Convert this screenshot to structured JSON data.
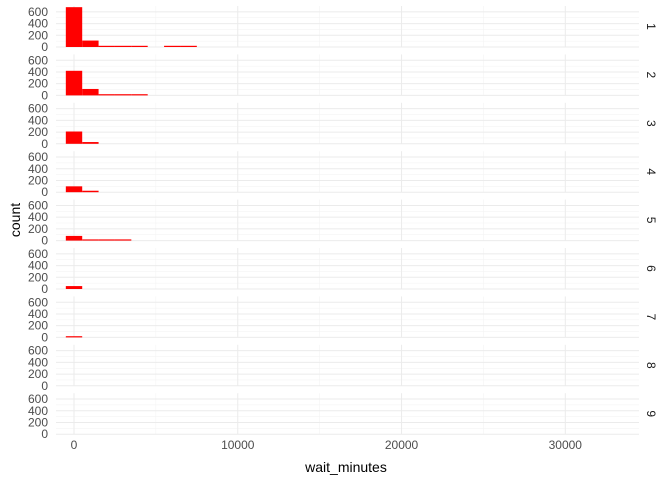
{
  "chart_data": {
    "type": "bar",
    "subtype": "histogram-faceted",
    "xlabel": "wait_minutes",
    "ylabel": "count",
    "x_ticks": [
      0,
      10000,
      20000,
      30000
    ],
    "x_tick_labels": [
      "0",
      "10000",
      "20000",
      "30000"
    ],
    "xlim": [
      -1100,
      34500
    ],
    "y_ticks": [
      0,
      200,
      400,
      600
    ],
    "y_tick_labels": [
      "0",
      "200",
      "400",
      "600"
    ],
    "ylim": [
      0,
      700
    ],
    "grid": true,
    "bar_color": "#ff0000",
    "bin_edges": [
      -500,
      500,
      1500,
      2500,
      3500,
      4500,
      5500,
      6500,
      7500
    ],
    "facets": [
      {
        "label": "1",
        "counts": [
          680,
          110,
          8,
          4,
          3,
          0,
          2,
          1
        ]
      },
      {
        "label": "2",
        "counts": [
          420,
          110,
          6,
          3,
          2,
          0,
          0,
          0
        ]
      },
      {
        "label": "3",
        "counts": [
          210,
          30,
          0,
          0,
          0,
          0,
          0,
          0
        ]
      },
      {
        "label": "4",
        "counts": [
          100,
          25,
          0,
          0,
          0,
          0,
          0,
          0
        ]
      },
      {
        "label": "5",
        "counts": [
          80,
          15,
          4,
          2,
          0,
          0,
          0,
          0
        ]
      },
      {
        "label": "6",
        "counts": [
          50,
          0,
          0,
          0,
          0,
          0,
          0,
          0
        ]
      },
      {
        "label": "7",
        "counts": [
          20,
          0,
          0,
          0,
          0,
          0,
          0,
          0
        ]
      },
      {
        "label": "8",
        "counts": [
          0,
          0,
          0,
          0,
          0,
          0,
          0,
          0
        ]
      },
      {
        "label": "9",
        "counts": [
          0,
          0,
          0,
          0,
          0,
          0,
          0,
          0
        ]
      }
    ]
  }
}
